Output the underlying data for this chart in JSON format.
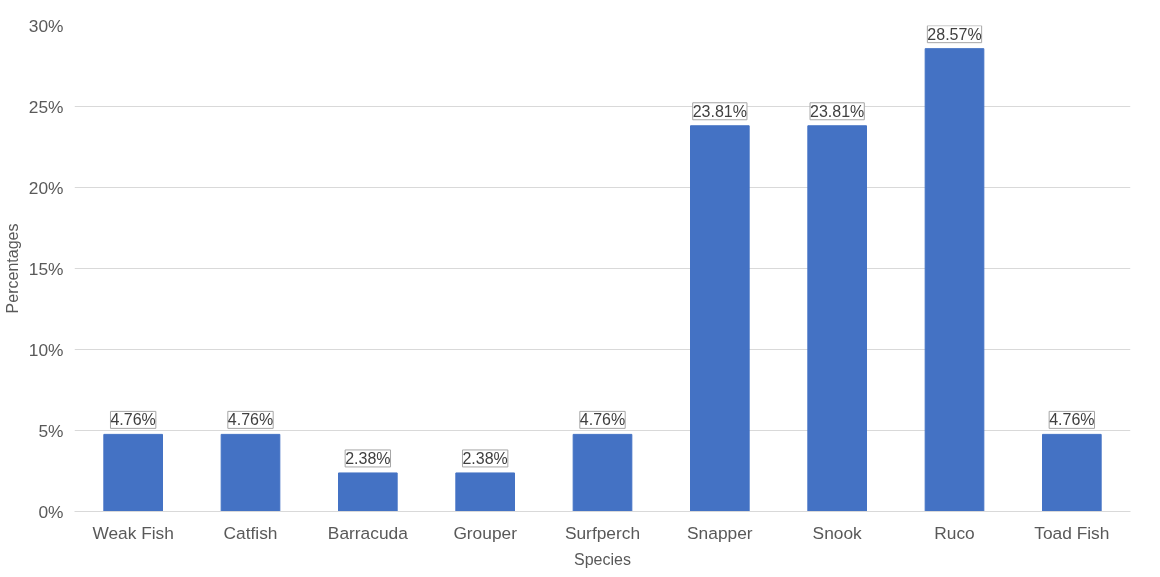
{
  "chart_data": {
    "type": "bar",
    "xlabel": "Species",
    "ylabel": "Percentages",
    "categories": [
      "Weak Fish",
      "Catfish",
      "Barracuda",
      "Grouper",
      "Surfperch",
      "Snapper",
      "Snook",
      "Ruco",
      "Toad Fish"
    ],
    "values": [
      4.76,
      4.76,
      2.38,
      2.38,
      4.76,
      23.81,
      23.81,
      28.57,
      4.76
    ],
    "value_labels": [
      "4.76%",
      "4.76%",
      "2.38%",
      "2.38%",
      "4.76%",
      "23.81%",
      "23.81%",
      "28.57%",
      "4.76%"
    ],
    "color": "#4472c4",
    "ylim": [
      0,
      30
    ],
    "yticks": [
      {
        "value": 0,
        "label": "0%"
      },
      {
        "value": 5,
        "label": "5%"
      },
      {
        "value": 10,
        "label": "10%"
      },
      {
        "value": 15,
        "label": "15%"
      },
      {
        "value": 20,
        "label": "20%"
      },
      {
        "value": 25,
        "label": "25%"
      },
      {
        "value": 30,
        "label": "30%"
      }
    ],
    "grid": "y"
  }
}
